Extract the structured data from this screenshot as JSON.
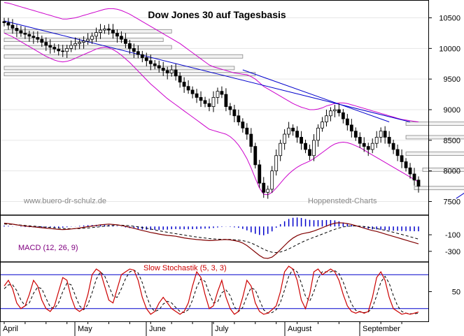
{
  "chart_data": [
    {
      "type": "candlestick",
      "title": "Dow Jones 30 auf Tagesbasis",
      "watermark_left": "www.buero-dr-schulz.de",
      "watermark_right": "Hoppenstedt-Charts",
      "y_ticks": [
        "10500",
        "10000",
        "9500",
        "9000",
        "8500",
        "8000",
        "7500"
      ],
      "y_tick_values": [
        10500,
        10000,
        9500,
        9000,
        8500,
        8000,
        7500
      ],
      "ylim": [
        7300,
        10700
      ],
      "months": [
        "April",
        "May",
        "June",
        "July",
        "August",
        "September"
      ],
      "closes": [
        10420,
        10380,
        10330,
        10290,
        10250,
        10230,
        10200,
        10180,
        10150,
        10100,
        10050,
        10020,
        9990,
        9960,
        9950,
        10000,
        10050,
        10080,
        10100,
        10120,
        10150,
        10200,
        10260,
        10300,
        10320,
        10300,
        10250,
        10200,
        10150,
        10080,
        10000,
        9950,
        9900,
        9850,
        9800,
        9750,
        9720,
        9680,
        9640,
        9600,
        9650,
        9550,
        9450,
        9380,
        9320,
        9260,
        9200,
        9150,
        9100,
        9050,
        9200,
        9300,
        9250,
        9050,
        9000,
        8900,
        8800,
        8700,
        8600,
        8400,
        8100,
        7800,
        7650,
        7700,
        8000,
        8250,
        8450,
        8600,
        8700,
        8650,
        8550,
        8450,
        8350,
        8250,
        8500,
        8700,
        8800,
        8900,
        8980,
        9000,
        8950,
        8850,
        8750,
        8650,
        8550,
        8450,
        8400,
        8350,
        8450,
        8550,
        8650,
        8550,
        8450,
        8350,
        8250,
        8150,
        8050,
        7950,
        7850,
        7750
      ],
      "hlines": [
        10280,
        10140,
        10020,
        9870,
        9680,
        9580,
        8770,
        8550,
        8280,
        8020,
        7720
      ],
      "trend_down_1": {
        "x": [
          0,
          97
        ],
        "y": [
          10450,
          8800
        ]
      },
      "trend_down_2": {
        "x": [
          57,
          92
        ],
        "y": [
          9650,
          8800
        ]
      },
      "trend_down_3": {
        "x": [
          134,
          173
        ],
        "y": [
          9050,
          8400
        ]
      },
      "trend_up": {
        "x": [
          108,
          140
        ],
        "y": [
          7550,
          9000
        ]
      },
      "band_upper": [
        10750,
        10740,
        10720,
        10700,
        10680,
        10660,
        10640,
        10620,
        10600,
        10580,
        10560,
        10540,
        10520,
        10500,
        10480,
        10480,
        10490,
        10500,
        10520,
        10540,
        10560,
        10580,
        10600,
        10620,
        10640,
        10650,
        10650,
        10640,
        10620,
        10590,
        10560,
        10520,
        10480,
        10440,
        10400,
        10360,
        10320,
        10280,
        10240,
        10200,
        10160,
        10120,
        10080,
        10030,
        9980,
        9930,
        9880,
        9830,
        9780,
        9730,
        9700,
        9680,
        9660,
        9640,
        9620,
        9600,
        9590,
        9580,
        9570,
        9540,
        9500,
        9440,
        9380,
        9340,
        9300,
        9260,
        9220,
        9180,
        9140,
        9100,
        9070,
        9040,
        9020,
        9000,
        9000,
        9010,
        9030,
        9060,
        9080,
        9100,
        9110,
        9110,
        9100,
        9080,
        9060,
        9040,
        9020,
        9000,
        8980,
        8960,
        8940,
        8920,
        8900,
        8880,
        8860,
        8840,
        8830,
        8820,
        8810,
        8800
      ],
      "band_lower": [
        10250,
        10220,
        10190,
        10150,
        10110,
        10070,
        10030,
        9990,
        9950,
        9910,
        9870,
        9840,
        9810,
        9790,
        9780,
        9790,
        9810,
        9840,
        9870,
        9900,
        9930,
        9960,
        9990,
        10010,
        10020,
        10010,
        9980,
        9940,
        9890,
        9830,
        9770,
        9700,
        9630,
        9560,
        9490,
        9420,
        9360,
        9300,
        9240,
        9180,
        9130,
        9080,
        9030,
        8980,
        8930,
        8880,
        8830,
        8780,
        8730,
        8680,
        8660,
        8640,
        8620,
        8600,
        8560,
        8500,
        8420,
        8320,
        8200,
        8050,
        7880,
        7720,
        7620,
        7610,
        7650,
        7720,
        7800,
        7880,
        7950,
        8010,
        8060,
        8100,
        8130,
        8160,
        8200,
        8250,
        8300,
        8350,
        8400,
        8440,
        8460,
        8470,
        8460,
        8440,
        8410,
        8380,
        8340,
        8300,
        8260,
        8220,
        8180,
        8140,
        8100,
        8060,
        8020,
        7980,
        7940,
        7900,
        7860,
        7820
      ]
    },
    {
      "type": "line",
      "title": "MACD (12, 26, 9)",
      "y_ticks": [
        "-100",
        "-300"
      ],
      "y_tick_values": [
        -100,
        -300
      ],
      "ylim": [
        -420,
        120
      ],
      "macd": [
        40,
        35,
        28,
        20,
        12,
        5,
        0,
        -5,
        -10,
        -15,
        -20,
        -25,
        -30,
        -35,
        -38,
        -35,
        -30,
        -25,
        -18,
        -10,
        -2,
        5,
        12,
        20,
        25,
        28,
        25,
        20,
        12,
        2,
        -10,
        -22,
        -35,
        -48,
        -60,
        -72,
        -82,
        -92,
        -100,
        -108,
        -112,
        -118,
        -128,
        -138,
        -146,
        -152,
        -158,
        -162,
        -166,
        -170,
        -168,
        -165,
        -160,
        -158,
        -162,
        -170,
        -180,
        -200,
        -230,
        -270,
        -310,
        -350,
        -380,
        -385,
        -370,
        -330,
        -280,
        -230,
        -180,
        -140,
        -110,
        -90,
        -80,
        -70,
        -55,
        -35,
        -15,
        5,
        25,
        40,
        45,
        42,
        35,
        25,
        10,
        -5,
        -20,
        -35,
        -50,
        -60,
        -75,
        -90,
        -105,
        -120,
        -135,
        -150,
        -165,
        -180,
        -195,
        -210
      ],
      "signal": [
        30,
        28,
        25,
        21,
        17,
        12,
        8,
        4,
        0,
        -4,
        -8,
        -12,
        -16,
        -20,
        -24,
        -26,
        -27,
        -27,
        -25,
        -22,
        -18,
        -13,
        -8,
        -2,
        4,
        9,
        13,
        15,
        15,
        13,
        9,
        3,
        -4,
        -12,
        -21,
        -31,
        -41,
        -51,
        -61,
        -70,
        -79,
        -87,
        -95,
        -104,
        -112,
        -120,
        -127,
        -134,
        -140,
        -146,
        -150,
        -153,
        -155,
        -156,
        -157,
        -160,
        -164,
        -171,
        -183,
        -200,
        -222,
        -248,
        -274,
        -296,
        -311,
        -315,
        -308,
        -293,
        -271,
        -245,
        -218,
        -193,
        -170,
        -150,
        -131,
        -112,
        -92,
        -73,
        -53,
        -34,
        -18,
        -6,
        2,
        7,
        7,
        4,
        -1,
        -8,
        -16,
        -25,
        -35,
        -46,
        -58,
        -70,
        -83,
        -96,
        -110,
        -124,
        -138,
        -152
      ],
      "histogram": [
        10,
        7,
        3,
        -1,
        -5,
        -7,
        -8,
        -9,
        -10,
        -11,
        -12,
        -13,
        -14,
        -15,
        -14,
        -9,
        -3,
        2,
        7,
        12,
        16,
        18,
        20,
        22,
        21,
        19,
        12,
        5,
        -3,
        -11,
        -19,
        -25,
        -31,
        -36,
        -39,
        -41,
        -41,
        -41,
        -39,
        -38,
        -33,
        -31,
        -33,
        -34,
        -34,
        -32,
        -31,
        -28,
        -26,
        -24,
        -18,
        -12,
        -5,
        -2,
        -5,
        -10,
        -16,
        -29,
        -47,
        -70,
        -88,
        -102,
        -106,
        -89,
        -59,
        -15,
        28,
        63,
        91,
        105,
        108,
        103,
        90,
        80,
        76,
        77,
        77,
        78,
        78,
        74,
        63,
        48,
        33,
        18,
        3,
        -9,
        -19,
        -27,
        -34,
        -35,
        -40,
        -44,
        -47,
        -50,
        -52,
        -54,
        -55,
        -56,
        -57,
        -58
      ],
      "colors": {
        "macd": "#800000",
        "signal": "#000000",
        "histogram": "#0000cc",
        "title": "#800080"
      }
    },
    {
      "type": "line",
      "title": "Slow Stochastik (5, 3, 3)",
      "y_ticks": [
        "50"
      ],
      "y_tick_values": [
        50
      ],
      "ylim": [
        0,
        100
      ],
      "reference_lines": [
        80,
        20
      ],
      "k": [
        60,
        70,
        55,
        30,
        20,
        25,
        45,
        70,
        60,
        35,
        20,
        15,
        25,
        50,
        75,
        70,
        40,
        20,
        15,
        20,
        45,
        80,
        90,
        85,
        60,
        35,
        30,
        55,
        80,
        85,
        90,
        88,
        70,
        40,
        20,
        10,
        15,
        30,
        40,
        30,
        20,
        15,
        10,
        15,
        30,
        60,
        85,
        75,
        45,
        20,
        25,
        50,
        70,
        40,
        20,
        10,
        15,
        40,
        70,
        60,
        30,
        15,
        10,
        12,
        18,
        25,
        50,
        85,
        95,
        90,
        70,
        35,
        20,
        45,
        85,
        90,
        80,
        85,
        90,
        85,
        70,
        45,
        25,
        15,
        12,
        15,
        12,
        15,
        40,
        75,
        85,
        70,
        40,
        20,
        15,
        10,
        12,
        10,
        12,
        14
      ],
      "d": [
        55,
        62,
        62,
        52,
        35,
        25,
        30,
        47,
        58,
        55,
        38,
        23,
        20,
        30,
        50,
        65,
        62,
        43,
        25,
        18,
        27,
        48,
        72,
        85,
        78,
        60,
        42,
        40,
        55,
        73,
        85,
        88,
        83,
        66,
        43,
        23,
        15,
        18,
        28,
        33,
        30,
        22,
        15,
        13,
        18,
        35,
        58,
        73,
        68,
        47,
        30,
        32,
        48,
        53,
        43,
        23,
        15,
        22,
        42,
        57,
        53,
        35,
        18,
        12,
        13,
        18,
        31,
        53,
        77,
        90,
        85,
        65,
        42,
        33,
        50,
        73,
        85,
        85,
        85,
        87,
        82,
        67,
        47,
        28,
        17,
        14,
        13,
        14,
        22,
        43,
        67,
        77,
        65,
        43,
        25,
        15,
        12,
        11,
        11,
        12
      ],
      "colors": {
        "k": "#cc0000",
        "d": "#000000",
        "title": "#cc0000"
      }
    }
  ],
  "colors": {
    "candle_up": "#ffffff",
    "candle_down": "#000000",
    "band": "#cc00cc",
    "trend": "#0000cc",
    "hline": "#888888",
    "hline_fill": "#f2f2f2",
    "frame": "#000000",
    "watermark": "#888888"
  }
}
